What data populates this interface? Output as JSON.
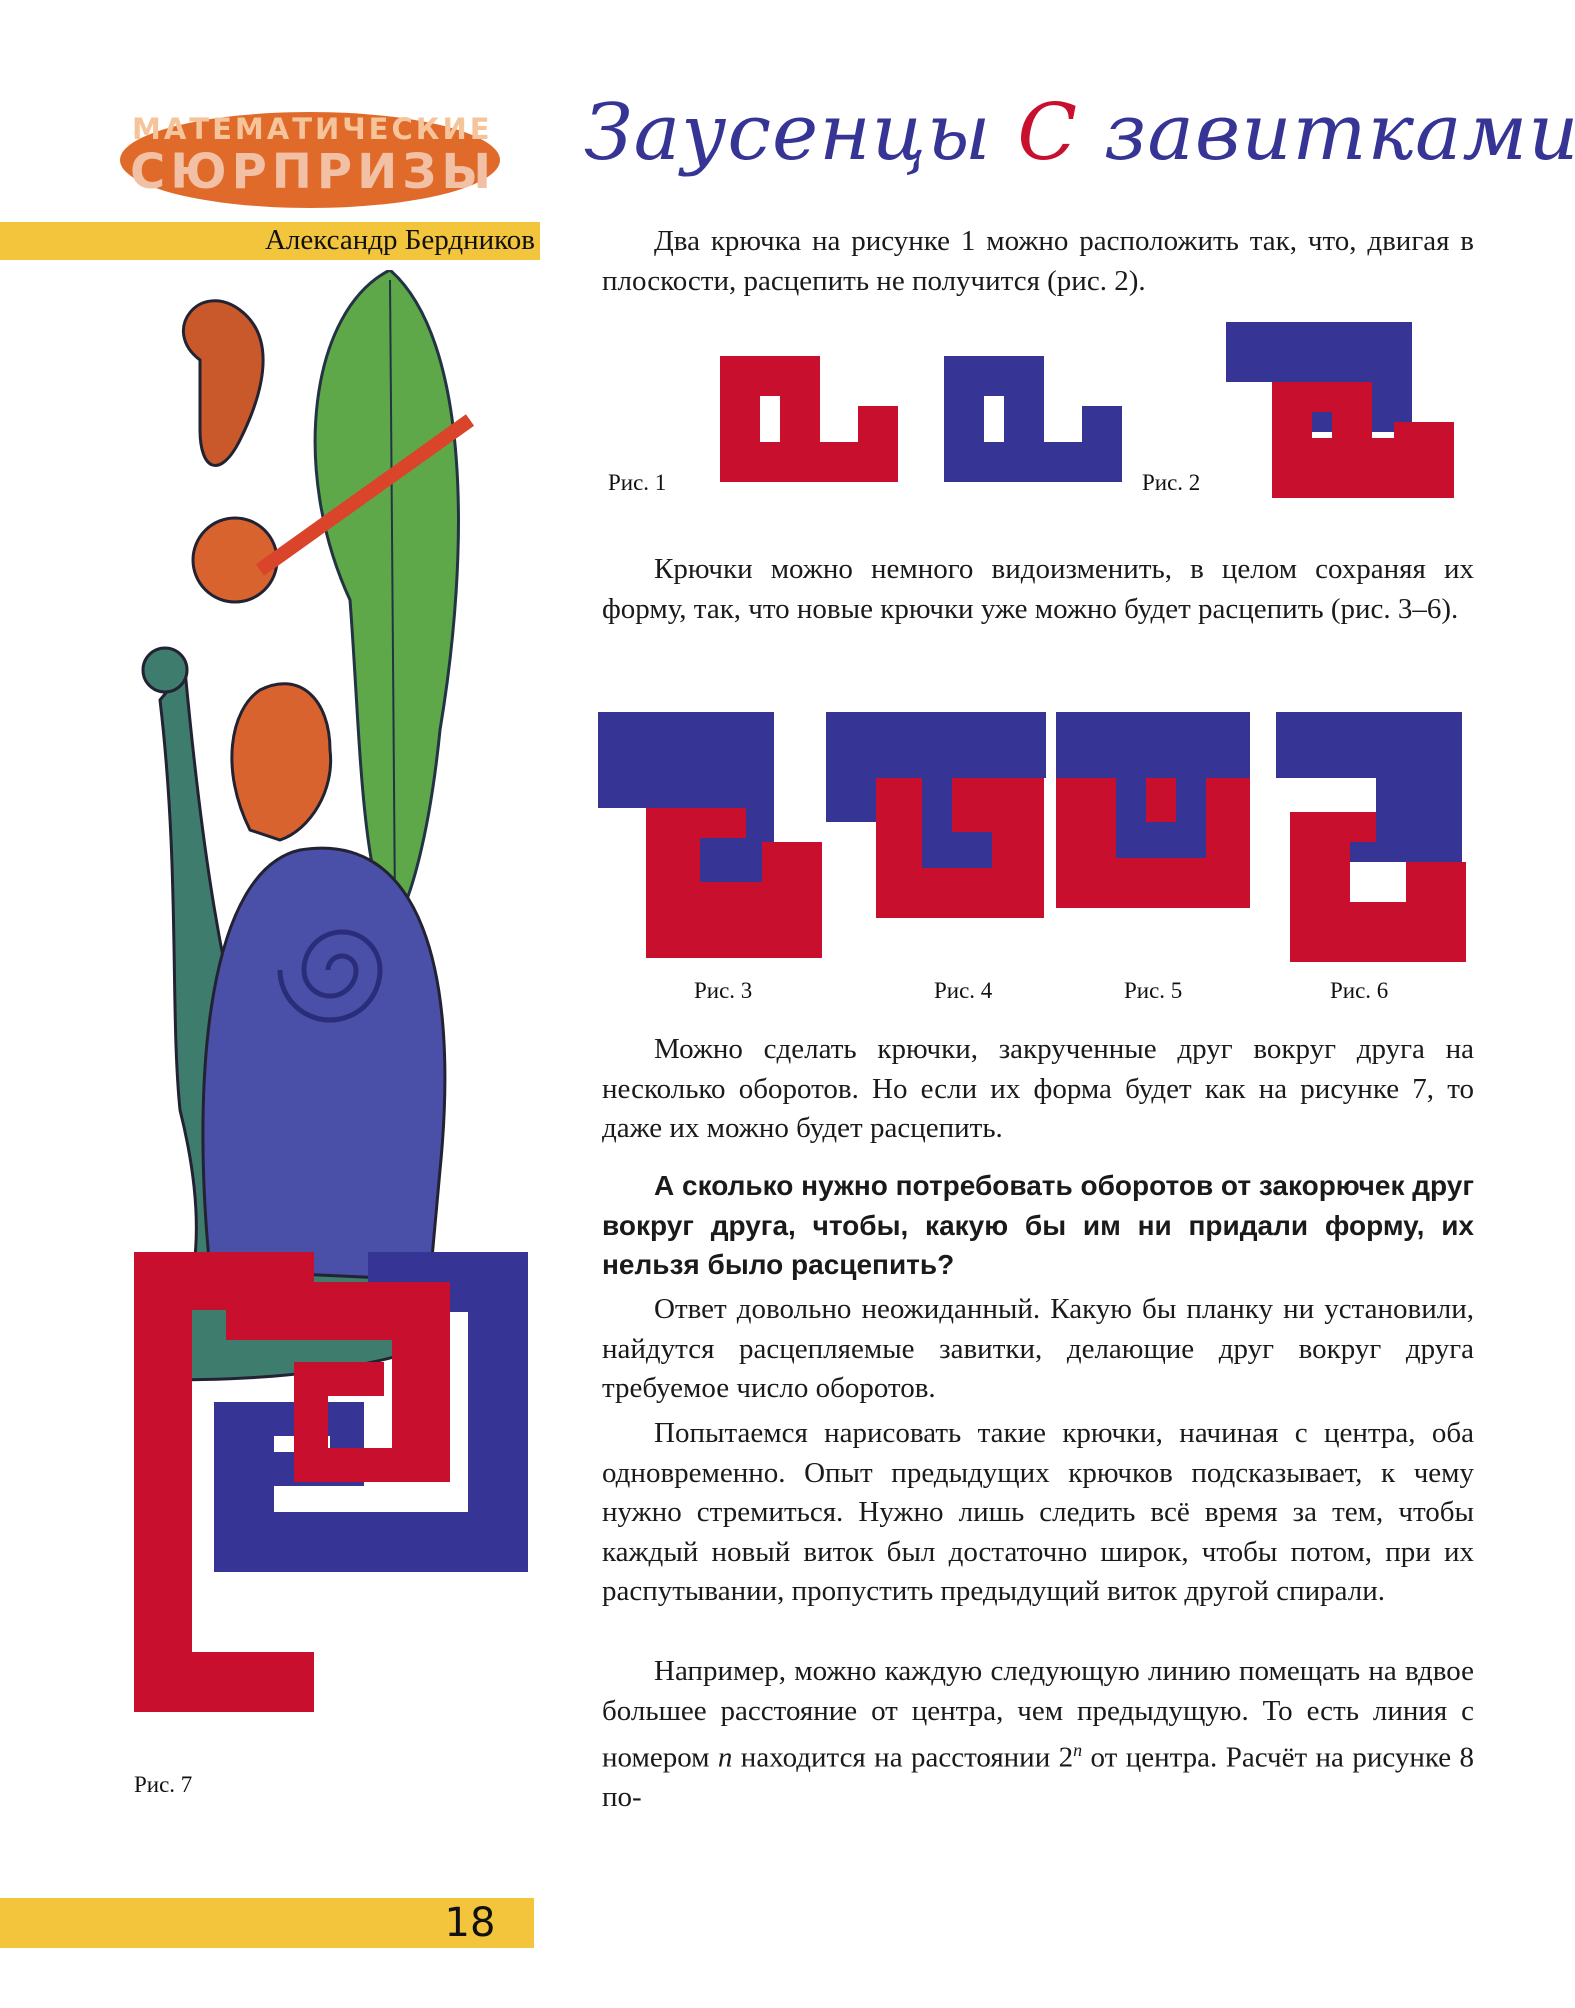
{
  "header": {
    "rubric_top": "МАТЕМАТИЧЕСКИЕ",
    "rubric_bottom": "СЮРПРИЗЫ",
    "author": "Александр Бердников"
  },
  "title": {
    "part1": "Заусенцы",
    "part2": "С",
    "part3": "завитками"
  },
  "paragraphs": {
    "p1": "Два крючка на рисунке 1 можно расположить так, что, двигая в плоскости, расцепить не получится (рис. 2).",
    "p2": "Крючки можно немного видоизменить, в целом сохраняя их форму, так, что новые крючки уже можно будет расцепить (рис. 3–6).",
    "p3": "Можно сделать крючки, закрученные друг вокруг друга на несколько оборотов. Но если их форма будет как на рисунке 7, то даже их можно будет расцепить.",
    "p4": "А сколько нужно потребовать оборотов от закорючек друг вокруг друга, чтобы, какую бы им ни придали форму, их нельзя было расцепить?",
    "p5": "Ответ довольно неожиданный. Какую бы планку ни установили, найдутся расцепляемые завитки, делающие друг вокруг друга требуемое число оборотов.",
    "p6": "Попытаемся нарисовать такие крючки, начиная с центра, оба одновременно. Опыт предыдущих крючков подсказывает, к чему нужно стремиться. Нужно лишь следить всё время за тем, чтобы каждый новый виток был достаточно широк, чтобы потом, при их распутывании, пропустить предыдущий виток другой спирали.",
    "p7a": "Например, можно каждую следующую линию помещать на вдвое большее расстояние от центра, чем предыдущую. То есть линия с номером ",
    "p7n": "n",
    "p7b": " находится на расстоянии 2",
    "p7sup": "n",
    "p7c": " от центра. Расчёт на рисунке 8 по-"
  },
  "captions": {
    "fig1": "Рис. 1",
    "fig2": "Рис. 2",
    "fig3": "Рис. 3",
    "fig4": "Рис. 4",
    "fig5": "Рис. 5",
    "fig6": "Рис. 6",
    "fig7": "Рис. 7"
  },
  "page_number": "18",
  "colors": {
    "red": "#c8102e",
    "blue": "#363596",
    "yellow": "#f2c53c",
    "orange": "#e06a2a"
  }
}
